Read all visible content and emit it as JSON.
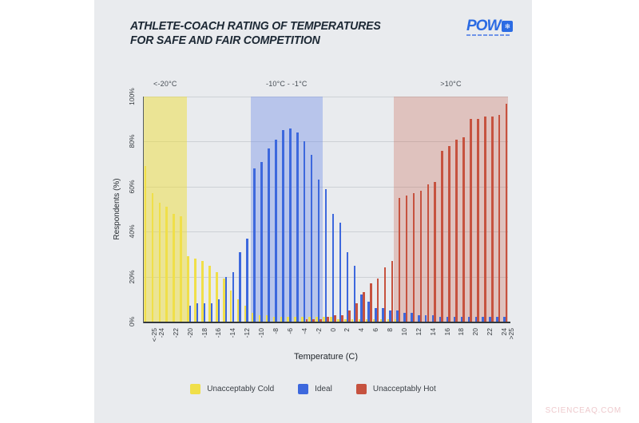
{
  "header": {
    "title_line1": "ATHLETE-COACH RATING OF TEMPERATURES",
    "title_line2": "FOR SAFE AND FAIR COMPETITION",
    "logo_text": "POW",
    "logo_icon": "snowflake-icon"
  },
  "page": {
    "watermark": "SCIENCEAQ.COM"
  },
  "chart_data": {
    "type": "bar",
    "title": "Athlete-Coach Rating of Temperatures for Safe and Fair Competition",
    "xlabel": "Temperature (C)",
    "ylabel": "Respondents (%)",
    "ylim": [
      0,
      100
    ],
    "grid": true,
    "legend_position": "bottom",
    "yticks": [
      {
        "value": 0,
        "label": "0%"
      },
      {
        "value": 20,
        "label": "20%"
      },
      {
        "value": 40,
        "label": "40%"
      },
      {
        "value": 60,
        "label": "60%"
      },
      {
        "value": 80,
        "label": "80%"
      },
      {
        "value": 100,
        "label": "100%"
      }
    ],
    "categories": [
      "<-25",
      "-24",
      "-23",
      "-22",
      "-21",
      "-20",
      "-19",
      "-18",
      "-17",
      "-16",
      "-15",
      "-14",
      "-13",
      "-12",
      "-11",
      "-10",
      "-9",
      "-8",
      "-7",
      "-6",
      "-5",
      "-4",
      "-3",
      "-2",
      "-1",
      "0",
      "1",
      "2",
      "3",
      "4",
      "5",
      "6",
      "7",
      "8",
      "9",
      "10",
      "11",
      "12",
      "13",
      "14",
      "15",
      "16",
      "17",
      "18",
      "19",
      "20",
      "21",
      "22",
      "23",
      "24",
      ">25"
    ],
    "xticks_shown": [
      "<-25",
      "-24",
      "-22",
      "-20",
      "-18",
      "-16",
      "-14",
      "-12",
      "-10",
      "-8",
      "-6",
      "-4",
      "-2",
      "0",
      "2",
      "4",
      "6",
      "8",
      "10",
      "12",
      "14",
      "16",
      "18",
      "20",
      "22",
      "24",
      ">25"
    ],
    "series": [
      {
        "name": "Unacceptably Cold",
        "color": "#f0df49",
        "values": [
          69,
          57,
          53,
          51,
          48,
          47,
          29,
          28,
          27,
          25,
          22,
          19,
          14,
          10,
          7,
          4,
          3,
          3,
          2,
          2,
          2,
          2,
          2,
          2,
          2,
          2,
          2,
          1,
          1,
          1,
          1,
          1,
          1,
          1,
          1,
          1,
          0,
          0,
          0,
          0,
          0,
          0,
          0,
          0,
          0,
          0,
          0,
          0,
          0,
          0,
          0
        ]
      },
      {
        "name": "Ideal",
        "color": "#3d68dd",
        "values": [
          0,
          0,
          0,
          0,
          0,
          0,
          7,
          8,
          8,
          8,
          10,
          20,
          22,
          31,
          37,
          68,
          71,
          77,
          81,
          85,
          86,
          84,
          80,
          74,
          63,
          59,
          48,
          44,
          31,
          25,
          12,
          9,
          6,
          6,
          5,
          5,
          4,
          4,
          3,
          3,
          3,
          2,
          2,
          2,
          2,
          2,
          2,
          2,
          2,
          2,
          2
        ]
      },
      {
        "name": "Unacceptably Hot",
        "color": "#c6523f",
        "values": [
          0,
          0,
          0,
          0,
          0,
          0,
          0,
          0,
          0,
          0,
          0,
          0,
          0,
          0,
          0,
          0,
          0,
          0,
          0,
          0,
          0,
          0,
          1,
          1,
          1,
          2,
          3,
          3,
          5,
          8,
          13,
          17,
          19,
          24,
          27,
          55,
          56,
          57,
          58,
          61,
          62,
          76,
          78,
          81,
          82,
          90,
          90,
          91,
          91,
          92,
          97
        ]
      }
    ],
    "bands": [
      {
        "label": "<-20°C",
        "from": "<-25",
        "to": "-20",
        "color": "rgba(238,222,60,0.5)"
      },
      {
        "label": "-10°C - -1°C",
        "from": "-10",
        "to": "-1",
        "color": "rgba(110,140,230,0.4)"
      },
      {
        "label": ">10°C",
        "from": "10",
        "to": ">25",
        "color": "rgba(198,88,70,0.28)"
      }
    ]
  }
}
